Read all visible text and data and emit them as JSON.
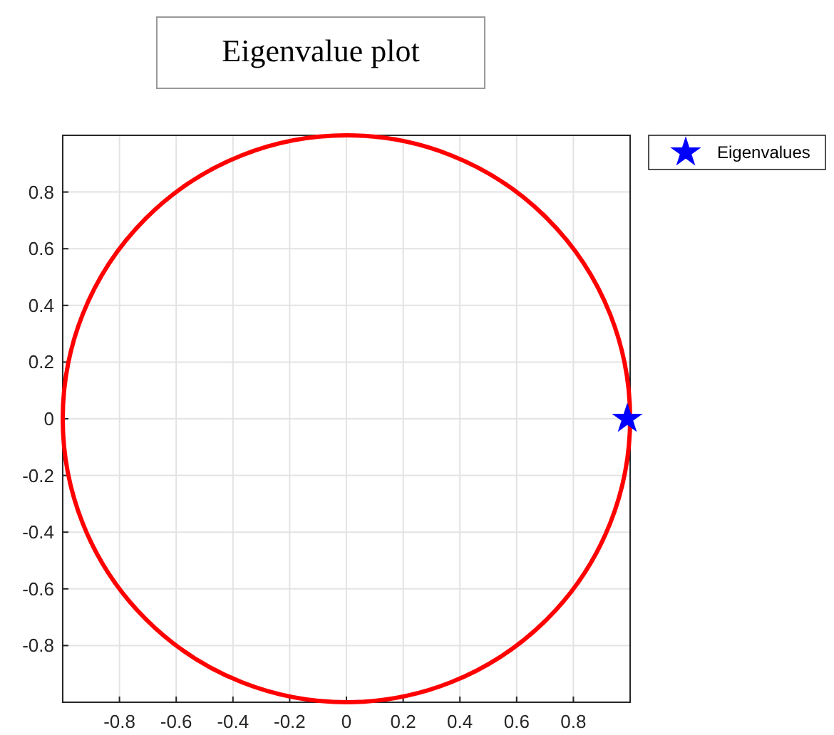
{
  "chart_data": {
    "type": "scatter",
    "title": "Eigenvalue plot",
    "xlim": [
      -1,
      1
    ],
    "ylim": [
      -1,
      1
    ],
    "xticks": [
      -0.8,
      -0.6,
      -0.4,
      -0.2,
      0,
      0.2,
      0.4,
      0.6,
      0.8
    ],
    "yticks": [
      -0.8,
      -0.6,
      -0.4,
      -0.2,
      0,
      0.2,
      0.4,
      0.6,
      0.8
    ],
    "grid": true,
    "legend": "top right",
    "series": [
      {
        "name": "Eigenvalues",
        "color": "#0000ff",
        "marker": "star",
        "x": [
          0.99
        ],
        "values": [
          0
        ]
      }
    ]
  }
}
